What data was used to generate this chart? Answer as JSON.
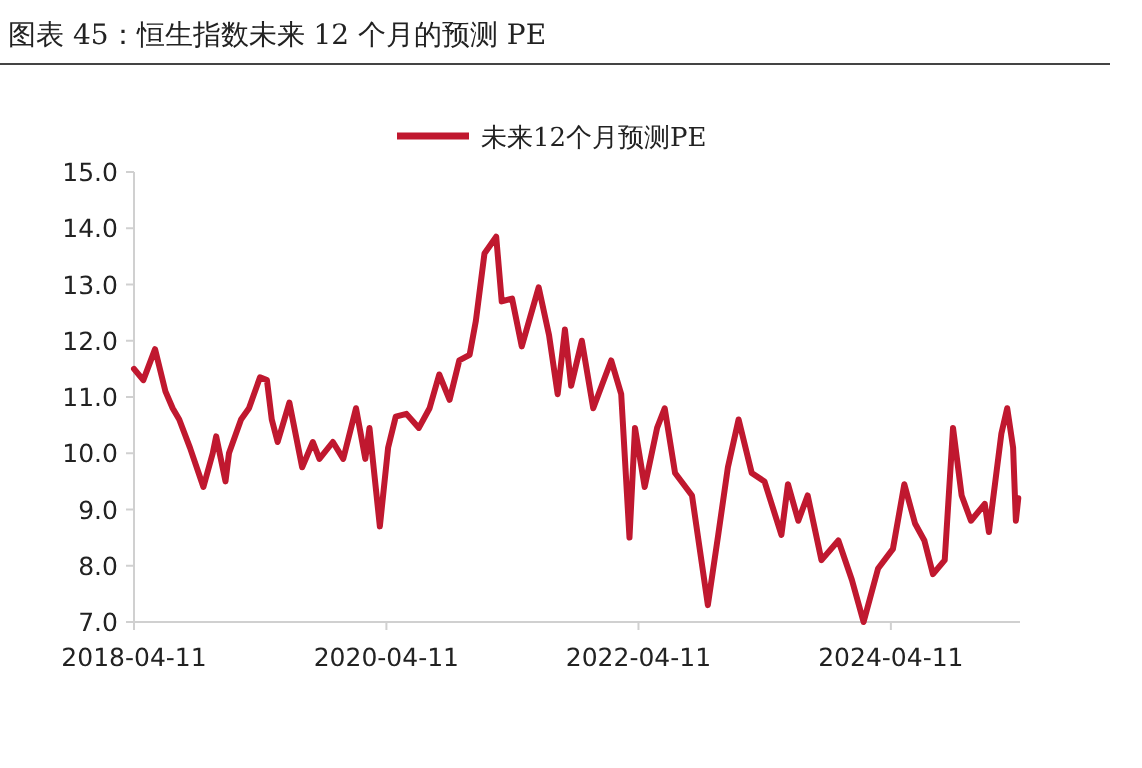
{
  "chart_data": {
    "type": "line",
    "title": "图表 45：恒生指数未来 12 个月的预测 PE",
    "x": [
      "2018-04-11",
      "2018-05-08",
      "2018-06-11",
      "2018-07-11",
      "2018-08-01",
      "2018-08-20",
      "2018-09-20",
      "2018-10-29",
      "2018-11-25",
      "2018-12-05",
      "2019-01-01",
      "2019-01-11",
      "2019-02-15",
      "2019-03-10",
      "2019-04-11",
      "2019-05-01",
      "2019-05-15",
      "2019-06-01",
      "2019-07-05",
      "2019-08-11",
      "2019-09-11",
      "2019-09-30",
      "2019-11-08",
      "2019-12-08",
      "2020-01-14",
      "2020-02-10",
      "2020-02-22",
      "2020-03-23",
      "2020-04-16",
      "2020-05-08",
      "2020-06-08",
      "2020-07-14",
      "2020-08-14",
      "2020-09-11",
      "2020-10-11",
      "2020-11-08",
      "2020-12-08",
      "2020-12-26",
      "2021-01-20",
      "2021-02-23",
      "2021-03-11",
      "2021-04-10",
      "2021-05-08",
      "2021-06-26",
      "2021-07-26",
      "2021-08-20",
      "2021-09-10",
      "2021-09-28",
      "2021-10-29",
      "2021-12-01",
      "2022-01-22",
      "2022-02-20",
      "2022-03-16",
      "2022-04-01",
      "2022-04-29",
      "2022-06-04",
      "2022-06-26",
      "2022-07-26",
      "2022-09-13",
      "2022-10-29",
      "2022-11-28",
      "2022-12-26",
      "2023-01-26",
      "2023-03-05",
      "2023-04-11",
      "2023-05-30",
      "2023-06-18",
      "2023-07-18",
      "2023-08-14",
      "2023-09-23",
      "2023-11-11",
      "2023-12-20",
      "2024-01-23",
      "2024-03-05",
      "2024-04-17",
      "2024-05-20",
      "2024-06-20",
      "2024-07-17",
      "2024-08-11",
      "2024-09-14",
      "2024-10-08",
      "2024-11-02",
      "2024-11-29",
      "2025-01-08",
      "2025-01-20",
      "2025-02-25",
      "2025-03-14",
      "2025-03-31",
      "2025-04-08",
      "2025-04-15"
    ],
    "series": [
      {
        "name": "未来12个月预测PE",
        "color": "#c0182f",
        "values": [
          11.5,
          11.3,
          11.85,
          11.1,
          10.8,
          10.6,
          10.1,
          9.4,
          10.0,
          10.3,
          9.5,
          10.0,
          10.6,
          10.8,
          11.35,
          11.3,
          10.6,
          10.2,
          10.9,
          9.75,
          10.2,
          9.9,
          10.2,
          9.9,
          10.8,
          9.9,
          10.45,
          8.7,
          10.1,
          10.65,
          10.7,
          10.45,
          10.8,
          11.4,
          10.95,
          11.65,
          11.75,
          12.35,
          13.55,
          13.85,
          12.7,
          12.75,
          11.9,
          12.95,
          12.1,
          11.05,
          12.2,
          11.2,
          12.0,
          10.8,
          11.65,
          11.05,
          8.5,
          10.45,
          9.4,
          10.45,
          10.8,
          9.65,
          9.25,
          7.3,
          8.55,
          9.75,
          10.6,
          9.65,
          9.5,
          8.55,
          9.45,
          8.8,
          9.25,
          8.1,
          8.45,
          7.75,
          7.0,
          7.95,
          8.3,
          9.45,
          8.75,
          8.45,
          7.85,
          8.1,
          10.45,
          9.25,
          8.8,
          9.1,
          8.6,
          10.35,
          10.8,
          10.1,
          8.8,
          9.2
        ]
      }
    ],
    "xlim": [
      "2018-04-11",
      "2025-04-20"
    ],
    "xticks": [
      {
        "value": "2018-04-11",
        "label": "2018-04-11"
      },
      {
        "value": "2020-04-11",
        "label": "2020-04-11"
      },
      {
        "value": "2022-04-11",
        "label": "2022-04-11"
      },
      {
        "value": "2024-04-11",
        "label": "2024-04-11"
      }
    ],
    "ylim": [
      7,
      15
    ],
    "yticks": [
      {
        "value": 7,
        "label": "7.0"
      },
      {
        "value": 8,
        "label": "8.0"
      },
      {
        "value": 9,
        "label": "9.0"
      },
      {
        "value": 10,
        "label": "10.0"
      },
      {
        "value": 11,
        "label": "11.0"
      },
      {
        "value": 12,
        "label": "12.0"
      },
      {
        "value": 13,
        "label": "13.0"
      },
      {
        "value": 14,
        "label": "14.0"
      },
      {
        "value": 15,
        "label": "15.0"
      }
    ],
    "grid": false,
    "legend": "top",
    "marker": "none",
    "line_style": "solid"
  }
}
